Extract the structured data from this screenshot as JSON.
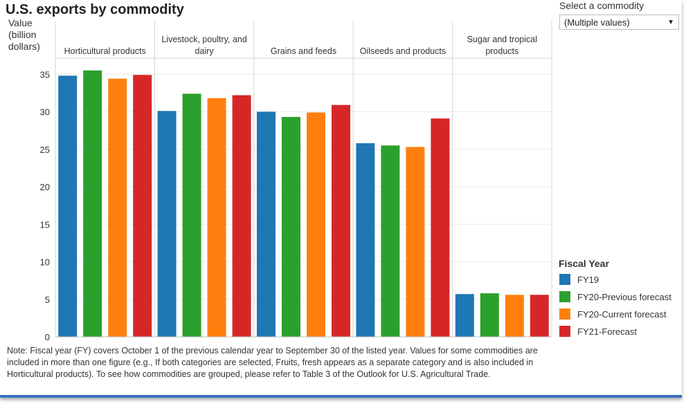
{
  "chart_data": {
    "type": "bar",
    "title": "U.S. exports by commodity",
    "ylabel": "Value (billion dollars)",
    "ylabel_lines": [
      "Value",
      "(billion",
      "dollars)"
    ],
    "xlabel": "",
    "ylim": [
      0,
      37
    ],
    "yticks": [
      0,
      5,
      10,
      15,
      20,
      25,
      30,
      35
    ],
    "categories": [
      "Horticultural products",
      "Livestock, poultry, and dairy",
      "Grains and feeds",
      "Oilseeds and products",
      "Sugar and tropical products"
    ],
    "category_label_lines": [
      [
        "Horticultural products"
      ],
      [
        "Livestock, poultry, and",
        "dairy"
      ],
      [
        "Grains and feeds"
      ],
      [
        "Oilseeds and products"
      ],
      [
        "Sugar and tropical",
        "products"
      ]
    ],
    "series": [
      {
        "name": "FY19",
        "color": "#1f77b4",
        "values": [
          34.8,
          30.1,
          30.0,
          25.8,
          5.7
        ]
      },
      {
        "name": "FY20-Previous forecast",
        "color": "#2ca02c",
        "values": [
          35.5,
          32.4,
          29.3,
          25.5,
          5.8
        ]
      },
      {
        "name": "FY20-Current forecast",
        "color": "#ff7f0e",
        "values": [
          34.4,
          31.8,
          29.9,
          25.3,
          5.6
        ]
      },
      {
        "name": "FY21-Forecast",
        "color": "#d62728",
        "values": [
          34.9,
          32.2,
          30.9,
          29.1,
          5.6
        ]
      }
    ],
    "grid": true,
    "legend_position": "right",
    "legend_title": "Fiscal Year"
  },
  "filter": {
    "label": "Select a commodity",
    "selected": "(Multiple values)"
  },
  "note": "Note: Fiscal year (FY) covers October 1 of the previous calendar year to September 30 of the listed year. Values for some commodities are included in more than one figure (e.g., If both categories are selected, Fruits, fresh appears as a separate category and is also included in Horticultural products). To see how commodities are grouped, please refer to Table 3 of the Outlook for U.S. Agricultural Trade."
}
